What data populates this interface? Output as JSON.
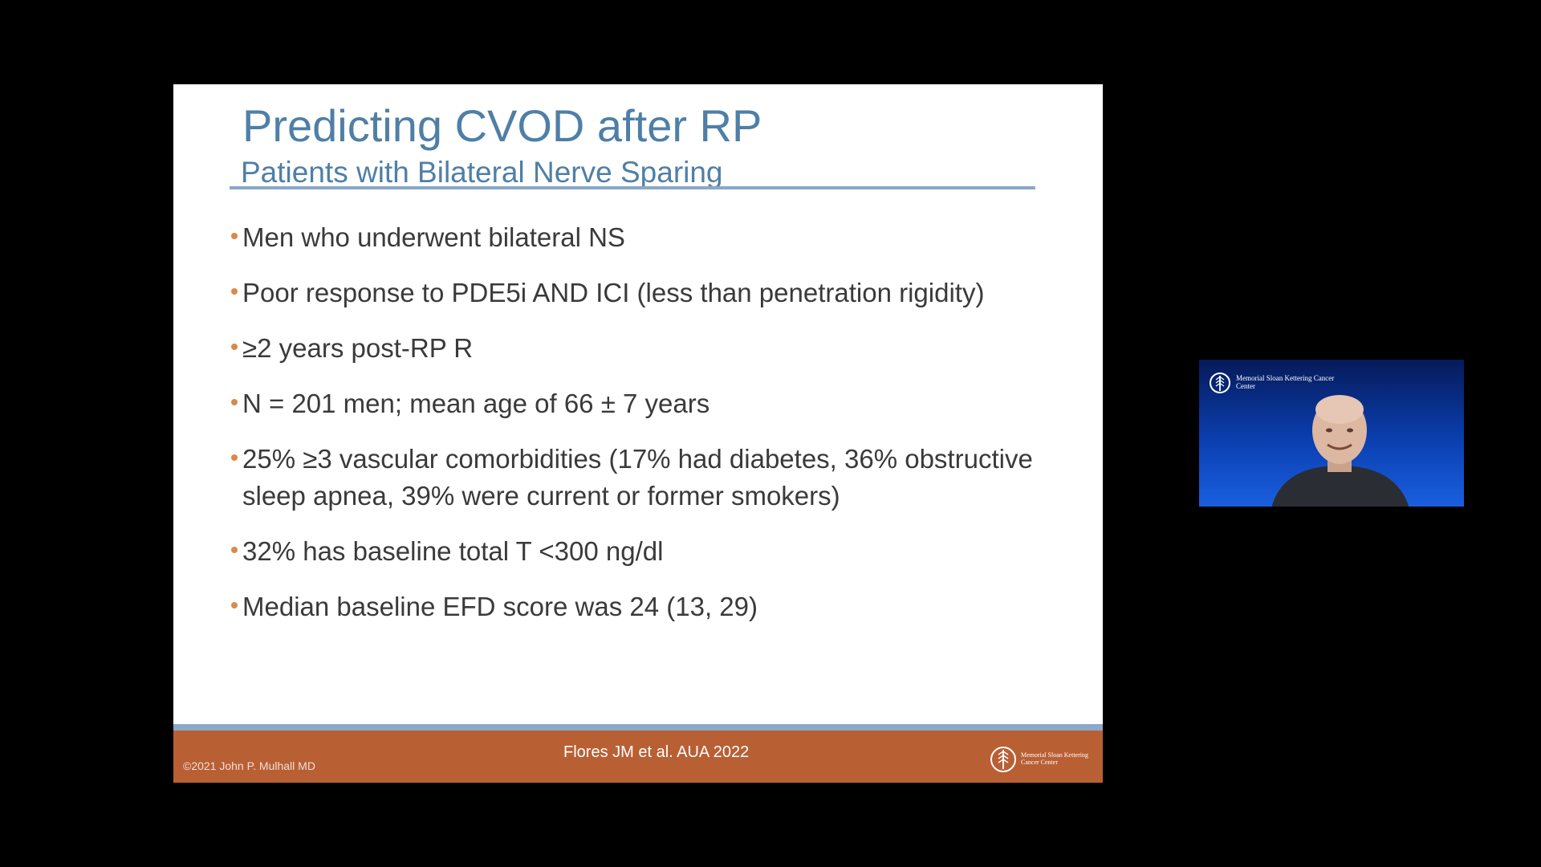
{
  "slide": {
    "title": "Predicting CVOD after RP",
    "subtitle": "Patients with Bilateral Nerve Sparing",
    "bullets": [
      "Men who underwent bilateral NS",
      "Poor response to PDE5i AND ICI (less than penetration rigidity)",
      "≥2 years post-RP R",
      "N = 201 men; mean age of 66 ± 7 years",
      "25% ≥3 vascular comorbidities (17% had diabetes, 36% obstructive sleep apnea, 39% were current or former smokers)",
      "32% has baseline total T <300 ng/dl",
      "Median baseline EFD score was 24 (13, 29)"
    ],
    "footer": {
      "copyright": "©2021 John P. Mulhall MD",
      "citation": "Flores JM et al. AUA 2022",
      "logo_icon": "mskcc-logo-icon",
      "logo_text": "Memorial Sloan Kettering Cancer Center"
    }
  },
  "video": {
    "logo_text": "Memorial Sloan Kettering Cancer Center",
    "logo_icon": "mskcc-logo-icon"
  },
  "colors": {
    "title": "#4f7fa6",
    "bullet_dot": "#d98a4a",
    "footer": "#b95f34",
    "rule": "#8aa8c8"
  }
}
